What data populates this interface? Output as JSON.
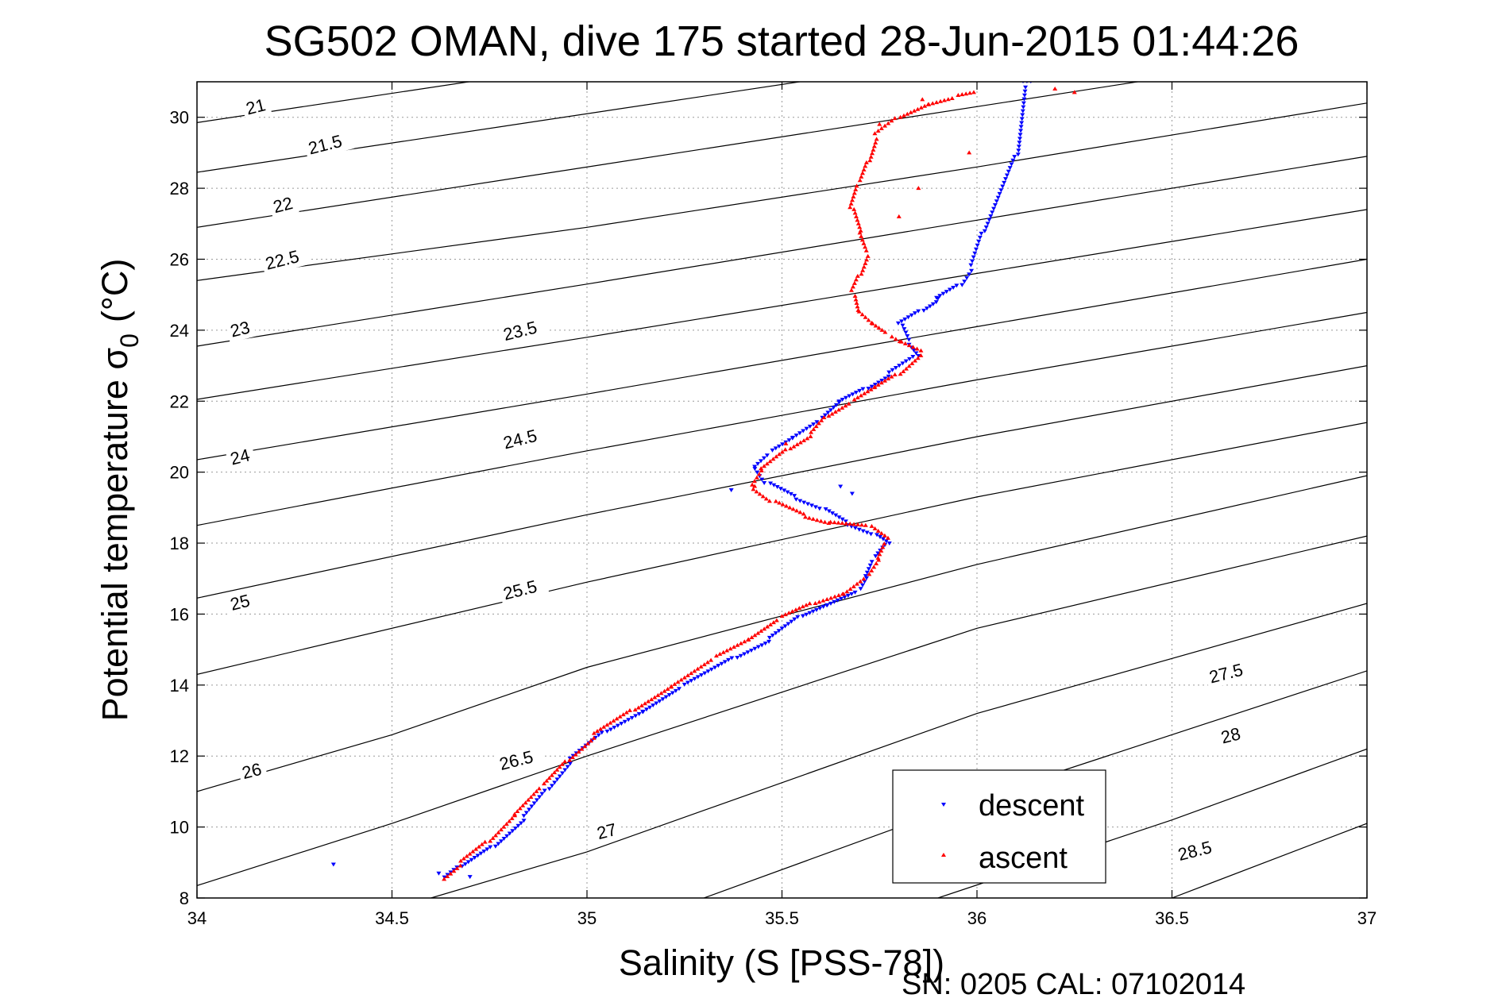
{
  "chart_data": {
    "type": "scatter",
    "title": "SG502 OMAN, dive 175 started 28-Jun-2015 01:44:26",
    "xlabel": "Salinity (S [PSS-78])",
    "ylabel_main": "Potential temperature σ",
    "ylabel_sub": "0",
    "ylabel_unit": "(°C)",
    "footnote": "SN: 0205  CAL: 07102014",
    "xlim": [
      34,
      37
    ],
    "ylim": [
      8,
      31
    ],
    "xticks": [
      "34",
      "34.5",
      "35",
      "35.5",
      "36",
      "36.5",
      "37"
    ],
    "yticks": [
      "8",
      "10",
      "12",
      "14",
      "16",
      "18",
      "20",
      "22",
      "24",
      "26",
      "28",
      "30"
    ],
    "grid": true,
    "legend_position": "bottom-right",
    "contours": [
      {
        "label": "21",
        "points": [
          [
            34.0,
            29.85
          ],
          [
            37.0,
            34.8
          ]
        ],
        "label_at": [
          34.13,
          30.07
        ]
      },
      {
        "label": "21.5",
        "points": [
          [
            34.0,
            28.45
          ],
          [
            37.0,
            33.4
          ]
        ],
        "label_at": [
          34.29,
          28.95
        ]
      },
      {
        "label": "22",
        "points": [
          [
            34.0,
            26.9
          ],
          [
            37.0,
            32.0
          ]
        ],
        "label_at": [
          34.2,
          27.3
        ]
      },
      {
        "label": "22.5",
        "points": [
          [
            34.0,
            25.4
          ],
          [
            35.0,
            26.9
          ],
          [
            36.0,
            28.6
          ],
          [
            37.0,
            30.4
          ]
        ],
        "label_at": [
          34.18,
          25.7
        ]
      },
      {
        "label": "23",
        "points": [
          [
            34.0,
            23.55
          ],
          [
            35.0,
            25.3
          ],
          [
            36.0,
            27.1
          ],
          [
            37.0,
            28.9
          ]
        ],
        "label_at": [
          34.09,
          23.8
        ]
      },
      {
        "label": "23.5",
        "points": [
          [
            34.0,
            22.05
          ],
          [
            35.0,
            23.8
          ],
          [
            36.0,
            25.6
          ],
          [
            37.0,
            27.4
          ]
        ],
        "label_at": [
          34.79,
          23.7
        ]
      },
      {
        "label": "24",
        "points": [
          [
            34.0,
            20.35
          ],
          [
            35.0,
            22.2
          ],
          [
            36.0,
            24.1
          ],
          [
            37.0,
            26.0
          ]
        ],
        "label_at": [
          34.09,
          20.2
        ]
      },
      {
        "label": "24.5",
        "points": [
          [
            34.0,
            18.5
          ],
          [
            35.0,
            20.6
          ],
          [
            36.0,
            22.6
          ],
          [
            37.0,
            24.5
          ]
        ],
        "label_at": [
          34.79,
          20.65
        ]
      },
      {
        "label": "25",
        "points": [
          [
            34.0,
            16.45
          ],
          [
            35.0,
            18.8
          ],
          [
            36.0,
            21.0
          ],
          [
            37.0,
            23.0
          ]
        ],
        "label_at": [
          34.09,
          16.1
        ]
      },
      {
        "label": "25.5",
        "points": [
          [
            34.0,
            14.3
          ],
          [
            35.0,
            16.9
          ],
          [
            36.0,
            19.3
          ],
          [
            37.0,
            21.4
          ]
        ],
        "label_at": [
          34.79,
          16.4
        ]
      },
      {
        "label": "26",
        "points": [
          [
            34.0,
            11.0
          ],
          [
            34.5,
            12.6
          ],
          [
            35.0,
            14.5
          ],
          [
            36.0,
            17.4
          ],
          [
            37.0,
            19.9
          ]
        ],
        "label_at": [
          34.12,
          11.35
        ]
      },
      {
        "label": "26.5",
        "points": [
          [
            34.0,
            8.35
          ],
          [
            34.5,
            10.1
          ],
          [
            35.0,
            12.0
          ],
          [
            36.0,
            15.6
          ],
          [
            37.0,
            18.2
          ]
        ],
        "label_at": [
          34.78,
          11.6
        ]
      },
      {
        "label": "27",
        "points": [
          [
            34.6,
            8.0
          ],
          [
            35.0,
            9.3
          ],
          [
            36.0,
            13.2
          ],
          [
            37.0,
            16.3
          ]
        ],
        "label_at": [
          35.03,
          9.65
        ]
      },
      {
        "label": "27.5",
        "points": [
          [
            35.3,
            8.0
          ],
          [
            36.0,
            10.8
          ],
          [
            37.0,
            14.4
          ]
        ],
        "label_at": [
          36.6,
          14.05
        ]
      },
      {
        "label": "28",
        "points": [
          [
            35.9,
            8.0
          ],
          [
            36.5,
            10.2
          ],
          [
            37.0,
            12.2
          ]
        ],
        "label_at": [
          36.63,
          12.35
        ]
      },
      {
        "label": "28.5",
        "points": [
          [
            36.5,
            8.0
          ],
          [
            37.0,
            10.1
          ]
        ],
        "label_at": [
          36.52,
          9.05
        ]
      }
    ],
    "series": [
      {
        "name": "descent",
        "color": "#0000ff",
        "marker": "triangle-down",
        "path": [
          [
            34.64,
            8.55
          ],
          [
            34.68,
            8.9
          ],
          [
            34.76,
            9.5
          ],
          [
            34.84,
            10.3
          ],
          [
            34.9,
            11.1
          ],
          [
            34.96,
            11.9
          ],
          [
            35.05,
            12.7
          ],
          [
            35.15,
            13.3
          ],
          [
            35.25,
            14.0
          ],
          [
            35.38,
            14.8
          ],
          [
            35.47,
            15.3
          ],
          [
            35.55,
            15.95
          ],
          [
            35.62,
            16.3
          ],
          [
            35.7,
            16.7
          ],
          [
            35.72,
            17.1
          ],
          [
            35.74,
            17.6
          ],
          [
            35.77,
            18.0
          ],
          [
            35.73,
            18.3
          ],
          [
            35.66,
            18.6
          ],
          [
            35.6,
            19.0
          ],
          [
            35.53,
            19.3
          ],
          [
            35.46,
            19.7
          ],
          [
            35.43,
            20.2
          ],
          [
            35.47,
            20.6
          ],
          [
            35.53,
            21.0
          ],
          [
            35.6,
            21.5
          ],
          [
            35.65,
            22.0
          ],
          [
            35.72,
            22.4
          ],
          [
            35.78,
            22.8
          ],
          [
            35.85,
            23.3
          ],
          [
            35.82,
            23.7
          ],
          [
            35.8,
            24.2
          ],
          [
            35.86,
            24.6
          ],
          [
            35.9,
            24.9
          ],
          [
            35.96,
            25.3
          ],
          [
            35.99,
            25.8
          ],
          [
            36.02,
            26.8
          ],
          [
            36.1,
            29.0
          ],
          [
            36.12,
            31.0
          ],
          [
            36.15,
            31.0
          ]
        ],
        "extra_points": [
          [
            34.35,
            8.95
          ],
          [
            34.62,
            8.7
          ],
          [
            34.7,
            8.6
          ],
          [
            35.37,
            19.5
          ],
          [
            35.65,
            19.6
          ],
          [
            35.68,
            19.4
          ],
          [
            35.9,
            24.9
          ]
        ]
      },
      {
        "name": "ascent",
        "color": "#ff0000",
        "marker": "triangle-up",
        "path": [
          [
            34.63,
            8.55
          ],
          [
            34.68,
            9.0
          ],
          [
            34.75,
            9.6
          ],
          [
            34.82,
            10.4
          ],
          [
            34.89,
            11.2
          ],
          [
            34.95,
            11.9
          ],
          [
            35.02,
            12.6
          ],
          [
            35.12,
            13.3
          ],
          [
            35.22,
            14.0
          ],
          [
            35.33,
            14.8
          ],
          [
            35.42,
            15.3
          ],
          [
            35.5,
            15.9
          ],
          [
            35.58,
            16.3
          ],
          [
            35.66,
            16.6
          ],
          [
            35.72,
            17.1
          ],
          [
            35.75,
            17.6
          ],
          [
            35.77,
            18.1
          ],
          [
            35.72,
            18.5
          ],
          [
            35.62,
            18.6
          ],
          [
            35.55,
            18.8
          ],
          [
            35.47,
            19.2
          ],
          [
            35.42,
            19.6
          ],
          [
            35.45,
            20.1
          ],
          [
            35.52,
            20.7
          ],
          [
            35.58,
            21.1
          ],
          [
            35.62,
            21.6
          ],
          [
            35.68,
            22.0
          ],
          [
            35.74,
            22.4
          ],
          [
            35.8,
            22.8
          ],
          [
            35.86,
            23.4
          ],
          [
            35.8,
            23.7
          ],
          [
            35.77,
            23.9
          ],
          [
            35.73,
            24.2
          ],
          [
            35.69,
            24.6
          ],
          [
            35.68,
            25.1
          ],
          [
            35.7,
            25.6
          ],
          [
            35.72,
            26.2
          ],
          [
            35.7,
            26.8
          ],
          [
            35.68,
            27.5
          ],
          [
            35.7,
            28.2
          ],
          [
            35.72,
            28.8
          ],
          [
            35.74,
            29.5
          ],
          [
            35.8,
            30.0
          ],
          [
            35.88,
            30.4
          ],
          [
            35.95,
            30.6
          ],
          [
            36.0,
            30.7
          ]
        ],
        "extra_points": [
          [
            35.86,
            30.5
          ],
          [
            36.2,
            30.8
          ],
          [
            36.25,
            30.7
          ],
          [
            35.75,
            29.8
          ],
          [
            35.98,
            29.0
          ],
          [
            35.85,
            28.0
          ],
          [
            35.8,
            27.2
          ],
          [
            35.43,
            19.6
          ],
          [
            35.51,
            20.8
          ]
        ]
      }
    ]
  }
}
